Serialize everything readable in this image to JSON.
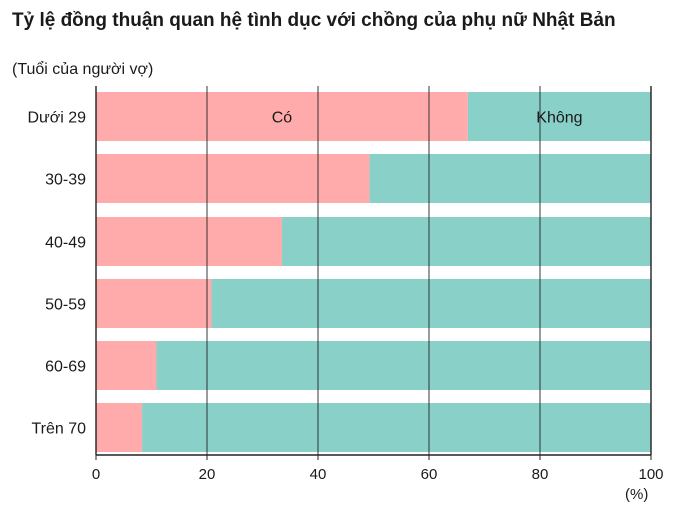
{
  "chart_data": {
    "type": "bar",
    "orientation": "horizontal",
    "stacked": true,
    "title": "Tỷ lệ đồng thuận quan hệ tình dục với chồng của phụ nữ Nhật Bản",
    "subtitle": "(Tuổi của người vợ)",
    "xlabel": "(%)",
    "ylabel": "",
    "xlim": [
      0,
      100
    ],
    "x_ticks": [
      "0",
      "20",
      "40",
      "60",
      "80",
      "100"
    ],
    "grid": true,
    "categories": [
      "Dưới 29",
      "30-39",
      "40-49",
      "50-59",
      "60-69",
      "Trên 70"
    ],
    "series": [
      {
        "name": "Có",
        "color": "#ffabab",
        "values": [
          67,
          49.3,
          33.5,
          20.8,
          10.9,
          8.3
        ]
      },
      {
        "name": "Không",
        "color": "#89d0c9",
        "values": [
          33,
          50.7,
          66.5,
          79.2,
          89.1,
          91.7
        ]
      }
    ],
    "legend": "inline inside first bar"
  }
}
